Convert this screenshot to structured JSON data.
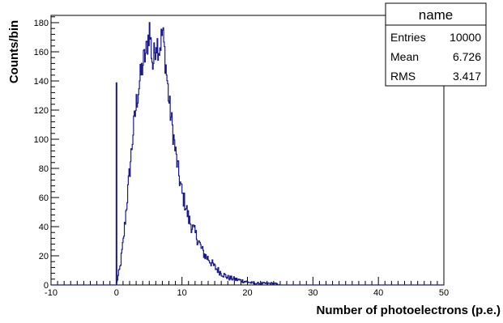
{
  "chart_data": {
    "type": "histogram",
    "xlabel": "Number of photoelectrons (p.e.)",
    "ylabel": "Counts/bin",
    "xlim": [
      -10,
      50
    ],
    "ylim": [
      0,
      185
    ],
    "x_ticks": [
      -10,
      0,
      10,
      20,
      30,
      40,
      50
    ],
    "y_ticks": [
      0,
      20,
      40,
      60,
      80,
      100,
      120,
      140,
      160,
      180
    ],
    "grid": false,
    "line_color": "#1a1a8c",
    "bin_width": 0.1,
    "spike": {
      "x": 0,
      "value": 139
    },
    "bin_values": [
      [
        0.0,
        2
      ],
      [
        0.5,
        12
      ],
      [
        1.0,
        30
      ],
      [
        1.5,
        55
      ],
      [
        2.0,
        80
      ],
      [
        2.5,
        105
      ],
      [
        3.0,
        125
      ],
      [
        3.5,
        140
      ],
      [
        4.0,
        152
      ],
      [
        4.5,
        160
      ],
      [
        5.0,
        176
      ],
      [
        5.5,
        150
      ],
      [
        6.0,
        168
      ],
      [
        6.5,
        162
      ],
      [
        7.0,
        174
      ],
      [
        7.5,
        150
      ],
      [
        8.0,
        125
      ],
      [
        8.5,
        108
      ],
      [
        9.0,
        90
      ],
      [
        9.5,
        75
      ],
      [
        10.0,
        62
      ],
      [
        10.5,
        55
      ],
      [
        11.0,
        45
      ],
      [
        11.5,
        40
      ],
      [
        12.0,
        35
      ],
      [
        12.5,
        30
      ],
      [
        13.0,
        24
      ],
      [
        13.5,
        20
      ],
      [
        14.0,
        18
      ],
      [
        14.5,
        15
      ],
      [
        15.0,
        12
      ],
      [
        16.0,
        8
      ],
      [
        17.0,
        5
      ],
      [
        18.0,
        4
      ],
      [
        19.0,
        3
      ],
      [
        20.0,
        2
      ],
      [
        21.0,
        1
      ],
      [
        22.0,
        1
      ],
      [
        24.0,
        1
      ],
      [
        25.0,
        0
      ]
    ],
    "stats_box": {
      "title": "name",
      "rows": [
        {
          "label": "Entries",
          "value": "10000"
        },
        {
          "label": "Mean",
          "value": "6.726"
        },
        {
          "label": "RMS",
          "value": "3.417"
        }
      ]
    }
  }
}
